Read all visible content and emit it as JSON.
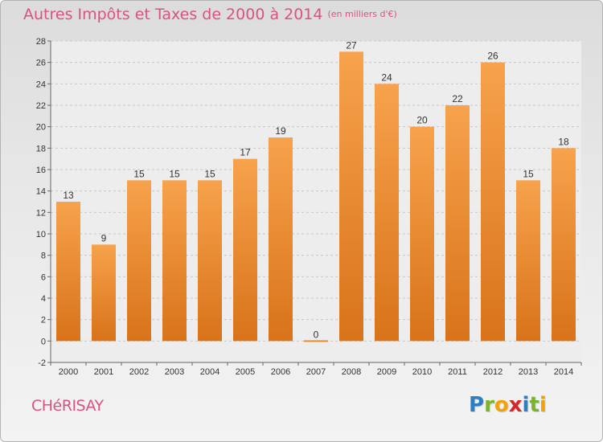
{
  "header": {
    "title": "Autres Impôts et Taxes de 2000 à 2014",
    "unit_note": "(en milliers d'€)"
  },
  "footer": {
    "place_name": "CHéRISAY",
    "brand": [
      "P",
      "r",
      "o",
      "x",
      "i",
      "t",
      "i"
    ],
    "brand_colors": [
      "#2d7fc0",
      "#7ab32e",
      "#f0a20a",
      "#d12a2a",
      "#2d7fc0",
      "#7ab32e",
      "#f0a20a"
    ]
  },
  "chart_data": {
    "type": "bar",
    "title": "Autres Impôts et Taxes de 2000 à 2014",
    "subtitle": "(en milliers d'€)",
    "categories": [
      "2000",
      "2001",
      "2002",
      "2003",
      "2004",
      "2005",
      "2006",
      "2007",
      "2008",
      "2009",
      "2010",
      "2011",
      "2012",
      "2013",
      "2014"
    ],
    "values": [
      13,
      9,
      15,
      15,
      15,
      17,
      19,
      0,
      27,
      24,
      20,
      22,
      26,
      15,
      18
    ],
    "data_labels": [
      "13",
      "9",
      "15",
      "15",
      "15",
      "17",
      "19",
      "0",
      "27",
      "24",
      "20",
      "22",
      "26",
      "15",
      "18"
    ],
    "ylim": [
      -2,
      28
    ],
    "yticks": [
      -2,
      0,
      2,
      4,
      6,
      8,
      10,
      12,
      14,
      16,
      18,
      20,
      22,
      24,
      26,
      28
    ],
    "grid": "horizontal dashed",
    "legend": "none",
    "bar_color_top": "#f7a24c",
    "bar_color_bottom": "#d8731a"
  }
}
